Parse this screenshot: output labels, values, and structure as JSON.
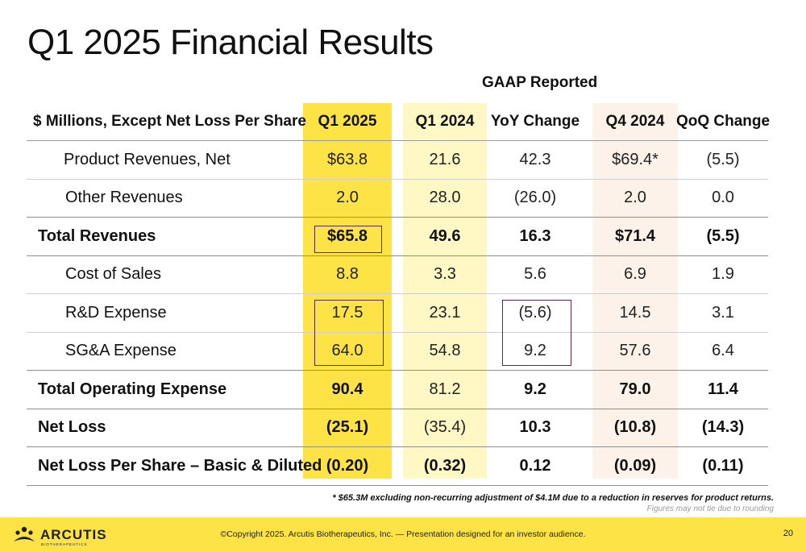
{
  "title": "Q1 2025 Financial Results",
  "group_label": "GAAP Reported",
  "table": {
    "headers": [
      "$ Millions, Except Net Loss Per Share",
      "Q1 2025",
      "Q1 2024",
      "YoY Change",
      "Q4 2024",
      "QoQ Change"
    ],
    "rows": [
      {
        "label": "Product Revenues, Net",
        "values": [
          "$63.8",
          "21.6",
          "42.3",
          "$69.4*",
          "(5.5)"
        ]
      },
      {
        "label": "Other Revenues",
        "values": [
          "2.0",
          "28.0",
          "(26.0)",
          "2.0",
          "0.0"
        ]
      },
      {
        "label": "Total Revenues",
        "values": [
          "$65.8",
          "49.6",
          "16.3",
          "$71.4",
          "(5.5)"
        ]
      },
      {
        "label": "Cost of Sales",
        "values": [
          "8.8",
          "3.3",
          "5.6",
          "6.9",
          "1.9"
        ]
      },
      {
        "label": "R&D Expense",
        "values": [
          "17.5",
          "23.1",
          "(5.6)",
          "14.5",
          "3.1"
        ]
      },
      {
        "label": "SG&A Expense",
        "values": [
          "64.0",
          "54.8",
          "9.2",
          "57.6",
          "6.4"
        ]
      },
      {
        "label": "Total Operating Expense",
        "values": [
          "90.4",
          "81.2",
          "9.2",
          "79.0",
          "11.4"
        ]
      },
      {
        "label": "Net Loss",
        "values": [
          "(25.1)",
          "(35.4)",
          "10.3",
          "(10.8)",
          "(14.3)"
        ]
      },
      {
        "label": "Net Loss Per Share – Basic & Diluted",
        "values": [
          "(0.20)",
          "(0.32)",
          "0.12",
          "(0.09)",
          "(0.11)"
        ]
      }
    ]
  },
  "footnote": "* $65.3M excluding non-recurring adjustment of $4.1M due to a reduction in reserves for product returns.",
  "footnote_rounding": "Figures may not tie due to rounding",
  "footer": {
    "logo_text": "ARCUTIS",
    "logo_sub": "BIOTHERAPEUTICS",
    "copyright": "©Copyright 2025. Arcutis Biotherapeutics, Inc.  —  Presentation designed for an investor audience.",
    "page": "20"
  },
  "colors": {
    "q1_2025_band": "#fde346",
    "q1_2024_band": "#fff7c4",
    "q4_2024_band": "#fdf2ea",
    "footer_bar": "#fde346",
    "highlight_box": "#5a2a48"
  }
}
